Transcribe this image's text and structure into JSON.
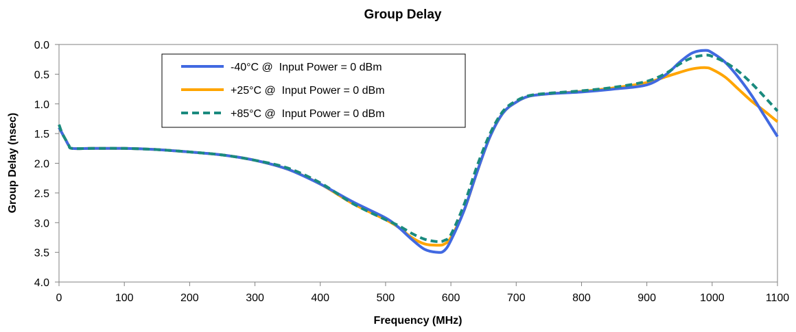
{
  "chart_data": {
    "type": "line",
    "title": "Group Delay",
    "xlabel": "Frequency (MHz)",
    "ylabel": "Group Delay (nsec)",
    "xlim": [
      0,
      1100
    ],
    "ylim": [
      0,
      4
    ],
    "y_inverted": true,
    "x_ticks": [
      0,
      100,
      200,
      300,
      400,
      500,
      600,
      700,
      800,
      900,
      1000,
      1100
    ],
    "y_ticks": [
      0,
      0.5,
      1,
      1.5,
      2,
      2.5,
      3,
      3.5,
      4
    ],
    "x_tick_labels": [
      "0",
      "100",
      "200",
      "300",
      "400",
      "500",
      "600",
      "700",
      "800",
      "900",
      "1000",
      "1100"
    ],
    "y_tick_labels": [
      "0.0",
      "0.5",
      "1.0",
      "1.5",
      "2.0",
      "2.5",
      "3.0",
      "3.5",
      "4.0"
    ],
    "grid": false,
    "legend_position": "top-left",
    "series": [
      {
        "name": "-40°C @  Input Power = 0 dBm",
        "color": "#4169E1",
        "style": "solid",
        "x": [
          0,
          5,
          10,
          15,
          20,
          50,
          100,
          150,
          200,
          250,
          300,
          350,
          400,
          450,
          500,
          520,
          540,
          560,
          580,
          590,
          600,
          620,
          640,
          660,
          680,
          700,
          720,
          750,
          800,
          850,
          900,
          930,
          950,
          970,
          990,
          1000,
          1020,
          1040,
          1060,
          1080,
          1100
        ],
        "y": [
          1.4,
          1.5,
          1.6,
          1.7,
          1.75,
          1.75,
          1.75,
          1.77,
          1.81,
          1.86,
          1.95,
          2.1,
          2.35,
          2.65,
          2.92,
          3.08,
          3.28,
          3.45,
          3.5,
          3.47,
          3.3,
          2.8,
          2.15,
          1.55,
          1.15,
          0.97,
          0.87,
          0.83,
          0.8,
          0.75,
          0.68,
          0.5,
          0.3,
          0.14,
          0.1,
          0.14,
          0.3,
          0.55,
          0.85,
          1.2,
          1.55
        ]
      },
      {
        "name": "+25°C @  Input Power = 0 dBm",
        "color": "#FFA500",
        "style": "solid",
        "x": [
          0,
          5,
          10,
          15,
          20,
          50,
          100,
          150,
          200,
          250,
          300,
          350,
          400,
          450,
          500,
          520,
          540,
          560,
          580,
          590,
          600,
          620,
          640,
          660,
          680,
          700,
          720,
          750,
          800,
          850,
          900,
          930,
          950,
          970,
          990,
          1000,
          1020,
          1040,
          1060,
          1080,
          1100
        ],
        "y": [
          1.4,
          1.5,
          1.6,
          1.7,
          1.75,
          1.75,
          1.75,
          1.77,
          1.81,
          1.86,
          1.95,
          2.1,
          2.35,
          2.68,
          2.95,
          3.08,
          3.25,
          3.36,
          3.38,
          3.36,
          3.25,
          2.8,
          2.15,
          1.55,
          1.15,
          0.97,
          0.87,
          0.83,
          0.79,
          0.73,
          0.64,
          0.54,
          0.47,
          0.41,
          0.39,
          0.42,
          0.55,
          0.75,
          0.95,
          1.12,
          1.3
        ]
      },
      {
        "name": "+85°C @  Input Power = 0 dBm",
        "color": "#1A8A7E",
        "style": "dashed",
        "x": [
          0,
          5,
          10,
          15,
          20,
          50,
          100,
          150,
          200,
          250,
          300,
          350,
          400,
          450,
          500,
          520,
          540,
          560,
          580,
          590,
          600,
          620,
          640,
          660,
          680,
          700,
          720,
          750,
          800,
          850,
          900,
          930,
          950,
          970,
          990,
          1000,
          1020,
          1040,
          1060,
          1080,
          1100
        ],
        "y": [
          1.35,
          1.5,
          1.6,
          1.7,
          1.75,
          1.75,
          1.75,
          1.77,
          1.81,
          1.86,
          1.95,
          2.08,
          2.33,
          2.68,
          2.95,
          3.05,
          3.18,
          3.28,
          3.32,
          3.3,
          3.2,
          2.7,
          2.05,
          1.5,
          1.12,
          0.95,
          0.86,
          0.82,
          0.78,
          0.72,
          0.62,
          0.48,
          0.33,
          0.22,
          0.18,
          0.2,
          0.3,
          0.45,
          0.65,
          0.88,
          1.12
        ]
      }
    ]
  }
}
